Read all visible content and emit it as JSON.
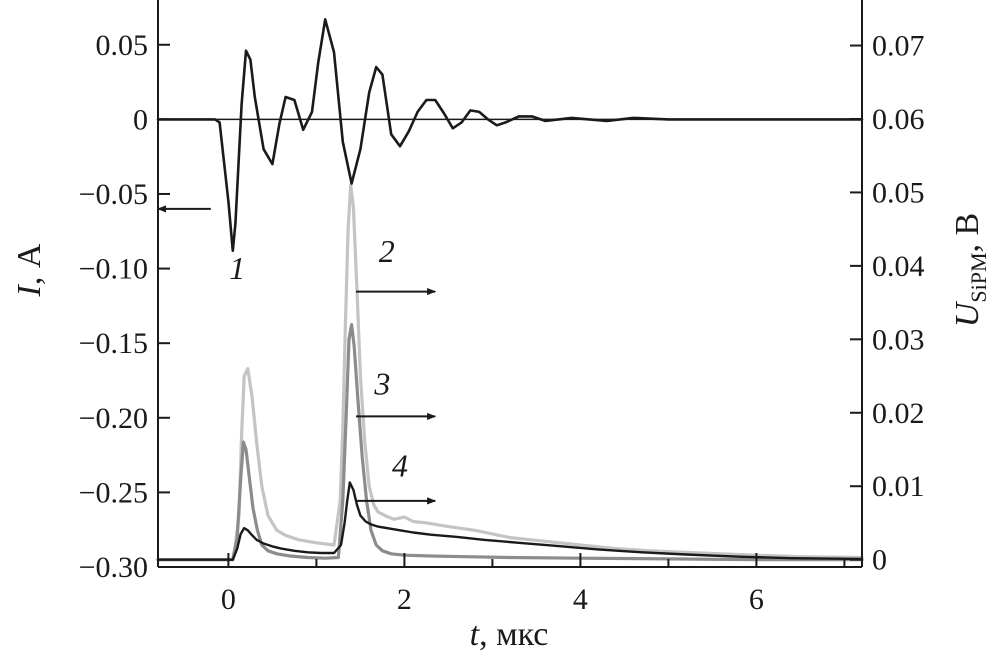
{
  "chart_data": {
    "type": "line",
    "x_axis": {
      "label_var": "t",
      "label_unit": ", мкс",
      "range": [
        -0.8,
        7.2
      ],
      "ticks": [
        0,
        2,
        4,
        6
      ],
      "tick_labels": [
        "0",
        "2",
        "4",
        "6"
      ],
      "minor_ticks": [
        -1,
        1,
        3,
        5,
        7
      ]
    },
    "y_left": {
      "label_var": "I",
      "label_unit": ", А",
      "range": [
        -0.3,
        0.08
      ],
      "ticks": [
        0.05,
        0,
        -0.05,
        -0.1,
        -0.15,
        -0.2,
        -0.25,
        -0.3
      ],
      "tick_labels": [
        "0.05",
        "0",
        "−0.05",
        "−0.10",
        "−0.15",
        "−0.20",
        "−0.25",
        "−0.30"
      ]
    },
    "y_right": {
      "label_var": "U",
      "label_sub": "SiPM",
      "label_unit": ", В",
      "range": [
        -0.001,
        0.0762
      ],
      "ticks": [
        0.07,
        0.06,
        0.05,
        0.04,
        0.03,
        0.02,
        0.01,
        0
      ],
      "tick_labels": [
        "0.07",
        "0.06",
        "0.05",
        "0.04",
        "0.03",
        "0.02",
        "0.01",
        "0"
      ]
    },
    "zero_line": true,
    "series": [
      {
        "name": "1",
        "axis": "left",
        "color": "#1a1a1a",
        "x": [
          -0.8,
          -0.15,
          -0.1,
          0.0,
          0.05,
          0.08,
          0.15,
          0.2,
          0.25,
          0.3,
          0.4,
          0.5,
          0.58,
          0.65,
          0.75,
          0.85,
          0.95,
          1.02,
          1.1,
          1.2,
          1.3,
          1.4,
          1.5,
          1.6,
          1.68,
          1.75,
          1.85,
          1.95,
          2.05,
          2.15,
          2.25,
          2.35,
          2.45,
          2.55,
          2.65,
          2.75,
          2.85,
          2.95,
          3.05,
          3.15,
          3.3,
          3.45,
          3.6,
          3.75,
          3.9,
          4.1,
          4.3,
          4.6,
          5.0,
          5.5,
          6.0,
          7.2
        ],
        "y": [
          0.0,
          0.0,
          -0.002,
          -0.055,
          -0.088,
          -0.07,
          0.01,
          0.046,
          0.04,
          0.015,
          -0.02,
          -0.03,
          -0.003,
          0.015,
          0.013,
          -0.007,
          0.005,
          0.038,
          0.067,
          0.045,
          -0.015,
          -0.043,
          -0.02,
          0.018,
          0.035,
          0.03,
          -0.01,
          -0.018,
          -0.008,
          0.005,
          0.013,
          0.013,
          0.004,
          -0.006,
          -0.002,
          0.006,
          0.005,
          0.0,
          -0.004,
          -0.002,
          0.002,
          0.002,
          -0.001,
          0.0,
          0.001,
          0.0,
          -0.001,
          0.001,
          0.0,
          0.0,
          0.0,
          0.0
        ]
      },
      {
        "name": "2",
        "axis": "right",
        "color": "#c4c4c4",
        "x": [
          -0.8,
          0.05,
          0.08,
          0.12,
          0.15,
          0.18,
          0.22,
          0.27,
          0.32,
          0.38,
          0.45,
          0.55,
          0.65,
          0.8,
          1.0,
          1.2,
          1.27,
          1.3,
          1.33,
          1.36,
          1.39,
          1.42,
          1.46,
          1.5,
          1.55,
          1.6,
          1.65,
          1.7,
          1.78,
          1.88,
          2.0,
          2.1,
          2.25,
          2.5,
          2.8,
          3.2,
          3.6,
          4.0,
          4.4,
          4.8,
          5.2,
          5.6,
          6.0,
          6.5,
          7.2
        ],
        "y": [
          0.0,
          0.0,
          0.002,
          0.006,
          0.017,
          0.025,
          0.026,
          0.022,
          0.016,
          0.01,
          0.006,
          0.004,
          0.0033,
          0.0027,
          0.0023,
          0.002,
          0.008,
          0.018,
          0.032,
          0.045,
          0.051,
          0.048,
          0.037,
          0.025,
          0.016,
          0.01,
          0.0075,
          0.0065,
          0.006,
          0.0055,
          0.0058,
          0.0052,
          0.005,
          0.0045,
          0.004,
          0.003,
          0.0025,
          0.002,
          0.0015,
          0.0012,
          0.001,
          0.0008,
          0.0006,
          0.0004,
          0.0003
        ]
      },
      {
        "name": "3",
        "axis": "right",
        "color": "#8c8c8c",
        "x": [
          -0.8,
          0.05,
          0.1,
          0.14,
          0.17,
          0.2,
          0.24,
          0.28,
          0.33,
          0.38,
          0.45,
          0.55,
          0.7,
          0.9,
          1.1,
          1.25,
          1.3,
          1.34,
          1.37,
          1.4,
          1.43,
          1.47,
          1.52,
          1.57,
          1.62,
          1.68,
          1.75,
          1.85,
          2.0,
          2.3,
          2.7,
          3.2,
          4.0,
          5.0,
          6.0,
          7.2
        ],
        "y": [
          0.0,
          0.0,
          0.003,
          0.011,
          0.016,
          0.015,
          0.011,
          0.007,
          0.004,
          0.002,
          0.0012,
          0.0008,
          0.0005,
          0.0003,
          0.0002,
          0.0003,
          0.008,
          0.02,
          0.03,
          0.032,
          0.029,
          0.022,
          0.014,
          0.008,
          0.004,
          0.002,
          0.0012,
          0.0008,
          0.0006,
          0.0005,
          0.0004,
          0.0003,
          0.0002,
          0.0001,
          0.0,
          0.0
        ]
      },
      {
        "name": "4",
        "axis": "right",
        "color": "#1a1a1a",
        "x": [
          -0.8,
          0.05,
          0.1,
          0.14,
          0.18,
          0.22,
          0.27,
          0.32,
          0.4,
          0.5,
          0.6,
          0.75,
          0.9,
          1.05,
          1.2,
          1.28,
          1.32,
          1.35,
          1.38,
          1.42,
          1.46,
          1.5,
          1.56,
          1.62,
          1.7,
          1.8,
          1.95,
          2.1,
          2.3,
          2.6,
          2.9,
          3.3,
          3.7,
          4.2,
          4.7,
          5.2,
          5.8,
          6.4,
          7.2
        ],
        "y": [
          0.0,
          0.0,
          0.0015,
          0.0035,
          0.0043,
          0.004,
          0.0033,
          0.0027,
          0.0022,
          0.0018,
          0.0015,
          0.0012,
          0.001,
          0.0009,
          0.0009,
          0.002,
          0.005,
          0.008,
          0.0105,
          0.0095,
          0.0075,
          0.006,
          0.0052,
          0.0048,
          0.0045,
          0.0043,
          0.004,
          0.0037,
          0.0034,
          0.0031,
          0.0027,
          0.0023,
          0.0019,
          0.0014,
          0.001,
          0.0007,
          0.0004,
          0.0002,
          0.0001
        ]
      }
    ],
    "annotations": [
      {
        "text": "1",
        "axis": "left",
        "tx": 0.1,
        "ty": -0.107,
        "ax0": -0.2,
        "ax1": -0.8,
        "ay": -0.06
      },
      {
        "text": "2",
        "axis": "right",
        "tx": 1.8,
        "ty": 0.0405,
        "ax0": 1.45,
        "ax1": 2.35,
        "ay": 0.0365
      },
      {
        "text": "3",
        "axis": "right",
        "tx": 1.75,
        "ty": 0.0225,
        "ax0": 1.45,
        "ax1": 2.35,
        "ay": 0.0195
      },
      {
        "text": "4",
        "axis": "right",
        "tx": 1.95,
        "ty": 0.0113,
        "ax0": 1.45,
        "ax1": 2.35,
        "ay": 0.008
      }
    ]
  }
}
